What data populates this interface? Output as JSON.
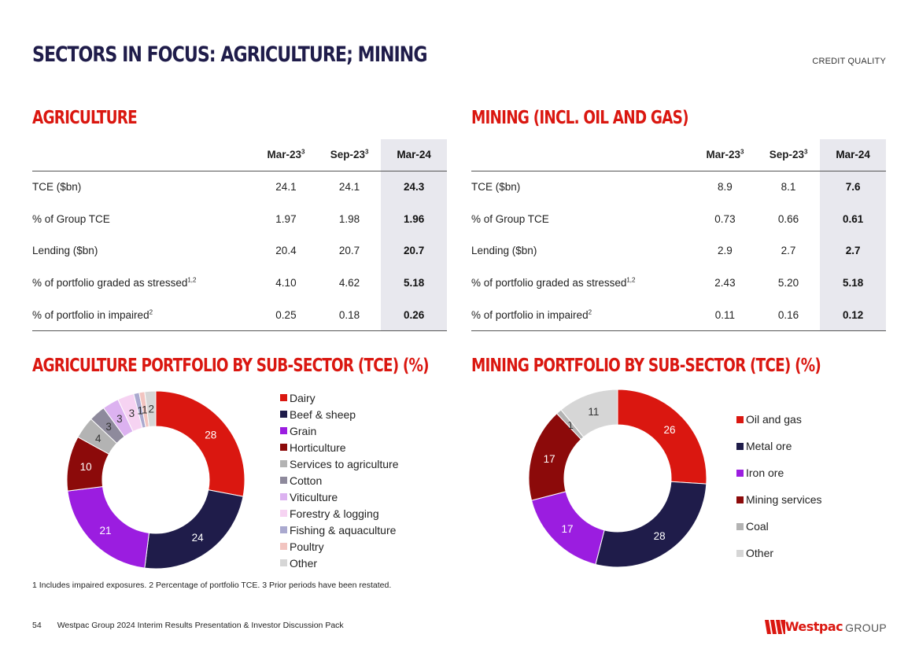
{
  "header": {
    "title": "SECTORS IN FOCUS: AGRICULTURE; MINING",
    "section_tag": "CREDIT QUALITY"
  },
  "agriculture": {
    "heading": "AGRICULTURE",
    "columns": [
      {
        "label": "Mar-23",
        "sup": "3"
      },
      {
        "label": "Sep-23",
        "sup": "3"
      },
      {
        "label": "Mar-24",
        "sup": ""
      }
    ],
    "rows": [
      {
        "label": "TCE ($bn)",
        "sup": "",
        "values": [
          "24.1",
          "24.1",
          "24.3"
        ]
      },
      {
        "label": "% of Group TCE",
        "sup": "",
        "values": [
          "1.97",
          "1.98",
          "1.96"
        ]
      },
      {
        "label": "Lending ($bn)",
        "sup": "",
        "values": [
          "20.4",
          "20.7",
          "20.7"
        ]
      },
      {
        "label": "% of portfolio graded as stressed",
        "sup": "1,2",
        "values": [
          "4.10",
          "4.62",
          "5.18"
        ]
      },
      {
        "label": "% of portfolio in impaired",
        "sup": "2",
        "values": [
          "0.25",
          "0.18",
          "0.26"
        ]
      }
    ]
  },
  "mining": {
    "heading": "MINING (INCL. OIL AND GAS)",
    "columns": [
      {
        "label": "Mar-23",
        "sup": "3"
      },
      {
        "label": "Sep-23",
        "sup": "3"
      },
      {
        "label": "Mar-24",
        "sup": ""
      }
    ],
    "rows": [
      {
        "label": "TCE ($bn)",
        "sup": "",
        "values": [
          "8.9",
          "8.1",
          "7.6"
        ]
      },
      {
        "label": "% of Group TCE",
        "sup": "",
        "values": [
          "0.73",
          "0.66",
          "0.61"
        ]
      },
      {
        "label": "Lending ($bn)",
        "sup": "",
        "values": [
          "2.9",
          "2.7",
          "2.7"
        ]
      },
      {
        "label": "% of portfolio graded as stressed",
        "sup": "1,2",
        "values": [
          "2.43",
          "5.20",
          "5.18"
        ]
      },
      {
        "label": "% of portfolio in impaired",
        "sup": "2",
        "values": [
          "0.11",
          "0.16",
          "0.12"
        ]
      }
    ]
  },
  "chart_data": [
    {
      "type": "pie",
      "title": "AGRICULTURE PORTFOLIO BY SUB-SECTOR (TCE) (%)",
      "categories": [
        "Dairy",
        "Beef & sheep",
        "Grain",
        "Horticulture",
        "Services to agriculture",
        "Cotton",
        "Viticulture",
        "Forestry & logging",
        "Fishing & aquaculture",
        "Poultry",
        "Other"
      ],
      "values": [
        28,
        24,
        21,
        10,
        4,
        3,
        3,
        3,
        1,
        1,
        2
      ],
      "labels": [
        "28",
        "24",
        "21",
        "10",
        "4",
        "3",
        "3",
        "3",
        "1",
        "1",
        "2"
      ],
      "colors": [
        "#da1710",
        "#1f1c4a",
        "#9b1de0",
        "#8c0a0a",
        "#b3b3b3",
        "#8e8a9c",
        "#dcb2f0",
        "#f6d3f2",
        "#aaa9cf",
        "#f2c4c0",
        "#d6d6d6"
      ],
      "legend_position": "right"
    },
    {
      "type": "pie",
      "title": "MINING PORTFOLIO BY SUB-SECTOR (TCE) (%)",
      "categories": [
        "Oil and gas",
        "Metal ore",
        "Iron ore",
        "Mining services",
        "Coal",
        "Other"
      ],
      "values": [
        26,
        28,
        17,
        17,
        1,
        11
      ],
      "labels": [
        "26",
        "28",
        "17",
        "17",
        "1",
        "11"
      ],
      "colors": [
        "#da1710",
        "#1f1c4a",
        "#9b1de0",
        "#8c0a0a",
        "#b3b3b3",
        "#d6d6d6"
      ],
      "legend_position": "right"
    }
  ],
  "footnote": "1 Includes impaired exposures. 2 Percentage of portfolio TCE. 3 Prior periods have been restated.",
  "footer": {
    "page_number": "54",
    "text": "Westpac Group 2024 Interim Results Presentation & Investor Discussion Pack",
    "logo_word": "Westpac",
    "logo_group": "GROUP"
  }
}
